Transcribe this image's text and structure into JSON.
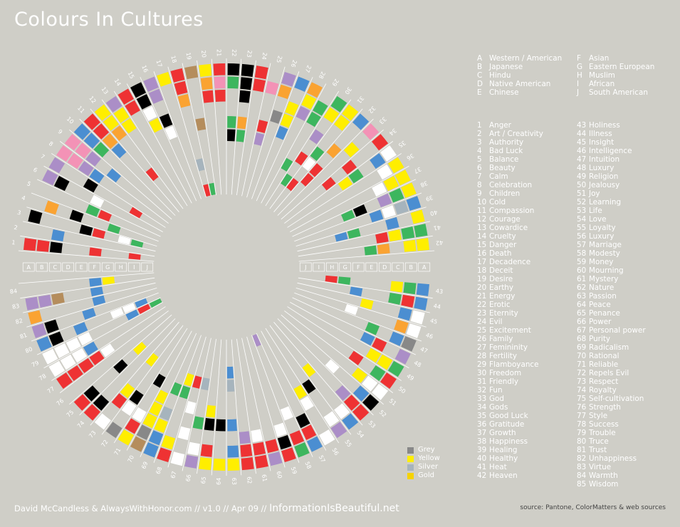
{
  "title": "Colours In Cultures",
  "colors": {
    "red": "#ee3233",
    "black": "#000000",
    "white": "#ffffff",
    "yellow": "#ffee00",
    "orange": "#faa332",
    "green": "#3db65e",
    "blue": "#4b8ed1",
    "purple": "#ab8ec7",
    "pink": "#f392b6",
    "brown": "#b58d5c",
    "grey": "#888888",
    "silver": "#a6b4bd",
    "gold": "#f6d300"
  },
  "cultures": [
    {
      "key": "A",
      "name": "Western / American"
    },
    {
      "key": "B",
      "name": "Japanese"
    },
    {
      "key": "C",
      "name": "Hindu"
    },
    {
      "key": "D",
      "name": "Native American"
    },
    {
      "key": "E",
      "name": "Chinese"
    },
    {
      "key": "F",
      "name": "Asian"
    },
    {
      "key": "G",
      "name": "Eastern European"
    },
    {
      "key": "H",
      "name": "Muslim"
    },
    {
      "key": "I",
      "name": "African"
    },
    {
      "key": "J",
      "name": "South American"
    }
  ],
  "meanings": [
    "Anger",
    "Art / Creativity",
    "Authority",
    "Bad Luck",
    "Balance",
    "Beauty",
    "Calm",
    "Celebration",
    "Children",
    "Cold",
    "Compassion",
    "Courage",
    "Cowardice",
    "Cruelty",
    "Danger",
    "Death",
    "Decadence",
    "Deceit",
    "Desire",
    "Earthy",
    "Energy",
    "Erotic",
    "Eternity",
    "Evil",
    "Excitement",
    "Family",
    "Femininity",
    "Fertility",
    "Flamboyance",
    "Freedom",
    "Friendly",
    "Fun",
    "God",
    "Gods",
    "Good Luck",
    "Gratitude",
    "Growth",
    "Happiness",
    "Healing",
    "Healthy",
    "Heat",
    "Heaven",
    "Holiness",
    "Illness",
    "Insight",
    "Intelligence",
    "Intuition",
    "Luxury",
    "Religion",
    "Jealousy",
    "Joy",
    "Learning",
    "Life",
    "Love",
    "Loyalty",
    "Luxury",
    "Marriage",
    "Modesty",
    "Money",
    "Mourning",
    "Mystery",
    "Nature",
    "Passion",
    "Peace",
    "Penance",
    "Power",
    "Personal power",
    "Purity",
    "Radicalism",
    "Rational",
    "Reliable",
    "Repels Evil",
    "Respect",
    "Royalty",
    "Self-cultivation",
    "Strength",
    "Style",
    "Success",
    "Trouble",
    "Truce",
    "Trust",
    "Unhappiness",
    "Virtue",
    "Warmth",
    "Wisdom"
  ],
  "ring_letters_left": [
    "A",
    "B",
    "C",
    "D",
    "E",
    "F",
    "G",
    "H",
    "I",
    "J"
  ],
  "ring_letters_right": [
    "J",
    "I",
    "H",
    "G",
    "F",
    "E",
    "D",
    "C",
    "B",
    "A"
  ],
  "swatch_legend": [
    {
      "label": "Grey",
      "color": "#888888"
    },
    {
      "label": "Yellow",
      "color": "#ffee00"
    },
    {
      "label": "Silver",
      "color": "#a6b4bd"
    },
    {
      "label": "Gold",
      "color": "#f6d300"
    }
  ],
  "chart_data": {
    "type": "radial-heatmap",
    "cells": [
      [
        1,
        0,
        "red"
      ],
      [
        1,
        1,
        "red"
      ],
      [
        1,
        2,
        "black"
      ],
      [
        1,
        5,
        "red"
      ],
      [
        1,
        8,
        "red"
      ],
      [
        2,
        2,
        "blue"
      ],
      [
        3,
        0,
        "black"
      ],
      [
        3,
        4,
        "black"
      ],
      [
        3,
        5,
        "red"
      ],
      [
        3,
        7,
        "white"
      ],
      [
        3,
        8,
        "green"
      ],
      [
        4,
        1,
        "orange"
      ],
      [
        4,
        3,
        "black"
      ],
      [
        4,
        6,
        "green"
      ],
      [
        5,
        4,
        "green"
      ],
      [
        5,
        5,
        "red"
      ],
      [
        6,
        0,
        "purple"
      ],
      [
        6,
        1,
        "black"
      ],
      [
        6,
        4,
        "white"
      ],
      [
        7,
        0,
        "purple"
      ],
      [
        7,
        3,
        "black"
      ],
      [
        7,
        7,
        "red"
      ],
      [
        8,
        0,
        "pink"
      ],
      [
        8,
        1,
        "pink"
      ],
      [
        8,
        2,
        "purple"
      ],
      [
        8,
        3,
        "blue"
      ],
      [
        9,
        0,
        "pink"
      ],
      [
        9,
        1,
        "pink"
      ],
      [
        9,
        2,
        "purple"
      ],
      [
        9,
        4,
        "blue"
      ],
      [
        10,
        0,
        "blue"
      ],
      [
        10,
        1,
        "blue"
      ],
      [
        10,
        2,
        "green"
      ],
      [
        11,
        0,
        "red"
      ],
      [
        11,
        1,
        "red"
      ],
      [
        11,
        2,
        "orange"
      ],
      [
        11,
        3,
        "blue"
      ],
      [
        12,
        0,
        "yellow"
      ],
      [
        12,
        1,
        "yellow"
      ],
      [
        12,
        2,
        "orange"
      ],
      [
        12,
        6,
        "red"
      ],
      [
        13,
        0,
        "purple"
      ],
      [
        13,
        1,
        "yellow"
      ],
      [
        13,
        2,
        "yellow"
      ],
      [
        14,
        0,
        "red"
      ],
      [
        14,
        1,
        "red"
      ],
      [
        15,
        0,
        "black"
      ],
      [
        15,
        1,
        "black"
      ],
      [
        15,
        2,
        "white"
      ],
      [
        15,
        3,
        "yellow"
      ],
      [
        16,
        0,
        "purple"
      ],
      [
        16,
        1,
        "purple"
      ],
      [
        16,
        3,
        "black"
      ],
      [
        16,
        4,
        "white"
      ],
      [
        17,
        0,
        "yellow"
      ],
      [
        18,
        0,
        "red"
      ],
      [
        18,
        1,
        "red"
      ],
      [
        18,
        2,
        "orange"
      ],
      [
        18,
        7,
        "silver"
      ],
      [
        18,
        9,
        "red"
      ],
      [
        19,
        0,
        "brown"
      ],
      [
        19,
        4,
        "brown"
      ],
      [
        19,
        9,
        "green"
      ],
      [
        20,
        0,
        "yellow"
      ],
      [
        20,
        1,
        "orange"
      ],
      [
        20,
        2,
        "red"
      ],
      [
        21,
        0,
        "red"
      ],
      [
        21,
        1,
        "pink"
      ],
      [
        21,
        2,
        "red"
      ],
      [
        22,
        0,
        "black"
      ],
      [
        22,
        1,
        "green"
      ],
      [
        22,
        4,
        "green"
      ],
      [
        22,
        5,
        "black"
      ],
      [
        23,
        0,
        "black"
      ],
      [
        23,
        1,
        "black"
      ],
      [
        23,
        2,
        "black"
      ],
      [
        23,
        4,
        "orange"
      ],
      [
        23,
        5,
        "green"
      ],
      [
        24,
        0,
        "red"
      ],
      [
        24,
        1,
        "red"
      ],
      [
        25,
        1,
        "pink"
      ],
      [
        25,
        4,
        "red"
      ],
      [
        25,
        5,
        "purple"
      ],
      [
        26,
        0,
        "purple"
      ],
      [
        26,
        1,
        "orange"
      ],
      [
        26,
        3,
        "grey"
      ],
      [
        27,
        0,
        "blue"
      ],
      [
        27,
        2,
        "yellow"
      ],
      [
        27,
        3,
        "yellow"
      ],
      [
        27,
        4,
        "blue"
      ],
      [
        28,
        0,
        "orange"
      ],
      [
        28,
        1,
        "yellow"
      ],
      [
        28,
        2,
        "purple"
      ],
      [
        29,
        1,
        "green"
      ],
      [
        29,
        2,
        "green"
      ],
      [
        29,
        6,
        "green"
      ],
      [
        30,
        0,
        "green"
      ],
      [
        30,
        1,
        "yellow"
      ],
      [
        30,
        3,
        "purple"
      ],
      [
        30,
        5,
        "red"
      ],
      [
        30,
        7,
        "green"
      ],
      [
        31,
        0,
        "yellow"
      ],
      [
        31,
        1,
        "yellow"
      ],
      [
        31,
        4,
        "green"
      ],
      [
        31,
        5,
        "white"
      ],
      [
        31,
        7,
        "red"
      ],
      [
        32,
        0,
        "blue"
      ],
      [
        32,
        3,
        "orange"
      ],
      [
        32,
        5,
        "red"
      ],
      [
        32,
        6,
        "red"
      ],
      [
        33,
        0,
        "pink"
      ],
      [
        33,
        2,
        "yellow"
      ],
      [
        34,
        0,
        "red"
      ],
      [
        34,
        3,
        "red"
      ],
      [
        34,
        5,
        "red"
      ],
      [
        35,
        0,
        "white"
      ],
      [
        35,
        1,
        "blue"
      ],
      [
        35,
        3,
        "green"
      ],
      [
        35,
        4,
        "yellow"
      ],
      [
        36,
        0,
        "yellow"
      ],
      [
        36,
        1,
        "white"
      ],
      [
        37,
        0,
        "yellow"
      ],
      [
        37,
        1,
        "yellow"
      ],
      [
        37,
        2,
        "white"
      ],
      [
        38,
        0,
        "yellow"
      ],
      [
        38,
        1,
        "green"
      ],
      [
        38,
        2,
        "purple"
      ],
      [
        38,
        4,
        "black"
      ],
      [
        38,
        5,
        "green"
      ],
      [
        39,
        0,
        "blue"
      ],
      [
        39,
        1,
        "silver"
      ],
      [
        39,
        2,
        "white"
      ],
      [
        39,
        3,
        "blue"
      ],
      [
        40,
        0,
        "yellow"
      ],
      [
        40,
        2,
        "blue"
      ],
      [
        40,
        5,
        "green"
      ],
      [
        40,
        6,
        "blue"
      ],
      [
        41,
        0,
        "green"
      ],
      [
        41,
        1,
        "green"
      ],
      [
        41,
        2,
        "yellow"
      ],
      [
        41,
        3,
        "red"
      ],
      [
        42,
        0,
        "yellow"
      ],
      [
        42,
        1,
        "yellow"
      ],
      [
        42,
        3,
        "orange"
      ],
      [
        42,
        4,
        "green"
      ],
      [
        43,
        0,
        "blue"
      ],
      [
        43,
        1,
        "green"
      ],
      [
        43,
        2,
        "yellow"
      ],
      [
        43,
        6,
        "green"
      ],
      [
        43,
        7,
        "red"
      ],
      [
        44,
        0,
        "blue"
      ],
      [
        44,
        1,
        "red"
      ],
      [
        44,
        2,
        "green"
      ],
      [
        44,
        5,
        "blue"
      ],
      [
        45,
        0,
        "white"
      ],
      [
        45,
        1,
        "blue"
      ],
      [
        45,
        4,
        "yellow"
      ],
      [
        46,
        0,
        "white"
      ],
      [
        46,
        1,
        "orange"
      ],
      [
        46,
        5,
        "white"
      ],
      [
        47,
        0,
        "grey"
      ],
      [
        47,
        1,
        "blue"
      ],
      [
        47,
        3,
        "green"
      ],
      [
        48,
        0,
        "purple"
      ],
      [
        48,
        2,
        "red"
      ],
      [
        48,
        3,
        "blue"
      ],
      [
        49,
        0,
        "green"
      ],
      [
        49,
        1,
        "yellow"
      ],
      [
        49,
        2,
        "yellow"
      ],
      [
        50,
        0,
        "red"
      ],
      [
        50,
        1,
        "green"
      ],
      [
        50,
        3,
        "red"
      ],
      [
        51,
        0,
        "white"
      ],
      [
        51,
        1,
        "white"
      ],
      [
        51,
        2,
        "yellow"
      ],
      [
        52,
        0,
        "black"
      ],
      [
        52,
        1,
        "blue"
      ],
      [
        52,
        4,
        "white"
      ],
      [
        53,
        0,
        "red"
      ],
      [
        53,
        1,
        "red"
      ],
      [
        53,
        2,
        "purple"
      ],
      [
        54,
        0,
        "blue"
      ],
      [
        54,
        1,
        "white"
      ],
      [
        54,
        5,
        "yellow"
      ],
      [
        55,
        0,
        "purple"
      ],
      [
        55,
        1,
        "white"
      ],
      [
        55,
        4,
        "black"
      ],
      [
        56,
        0,
        "white"
      ],
      [
        56,
        3,
        "white"
      ],
      [
        56,
        4,
        "yellow"
      ],
      [
        57,
        0,
        "blue"
      ],
      [
        57,
        1,
        "red"
      ],
      [
        57,
        2,
        "black"
      ],
      [
        58,
        0,
        "green"
      ],
      [
        58,
        1,
        "red"
      ],
      [
        58,
        3,
        "white"
      ],
      [
        58,
        9,
        "purple"
      ],
      [
        59,
        0,
        "red"
      ],
      [
        59,
        1,
        "black"
      ],
      [
        59,
        2,
        "white"
      ],
      [
        60,
        0,
        "purple"
      ],
      [
        60,
        1,
        "red"
      ],
      [
        61,
        0,
        "red"
      ],
      [
        61,
        1,
        "red"
      ],
      [
        61,
        2,
        "white"
      ],
      [
        62,
        0,
        "red"
      ],
      [
        62,
        1,
        "red"
      ],
      [
        62,
        2,
        "purple"
      ],
      [
        63,
        0,
        "yellow"
      ],
      [
        63,
        1,
        "blue"
      ],
      [
        63,
        3,
        "blue"
      ],
      [
        63,
        6,
        "silver"
      ],
      [
        63,
        7,
        "blue"
      ],
      [
        64,
        0,
        "yellow"
      ],
      [
        64,
        3,
        "black"
      ],
      [
        65,
        0,
        "yellow"
      ],
      [
        65,
        1,
        "red"
      ],
      [
        65,
        3,
        "black"
      ],
      [
        65,
        4,
        "yellow"
      ],
      [
        66,
        0,
        "purple"
      ],
      [
        66,
        1,
        "white"
      ],
      [
        66,
        3,
        "green"
      ],
      [
        66,
        6,
        "silver"
      ],
      [
        67,
        0,
        "white"
      ],
      [
        67,
        2,
        "white"
      ],
      [
        67,
        4,
        "white"
      ],
      [
        67,
        6,
        "red"
      ],
      [
        68,
        0,
        "red"
      ],
      [
        68,
        1,
        "yellow"
      ],
      [
        68,
        5,
        "green"
      ],
      [
        68,
        6,
        "yellow"
      ],
      [
        69,
        0,
        "blue"
      ],
      [
        69,
        1,
        "blue"
      ],
      [
        69,
        2,
        "yellow"
      ],
      [
        69,
        3,
        "silver"
      ],
      [
        69,
        5,
        "green"
      ],
      [
        70,
        0,
        "brown"
      ],
      [
        70,
        1,
        "grey"
      ],
      [
        70,
        2,
        "yellow"
      ],
      [
        70,
        3,
        "yellow"
      ],
      [
        70,
        4,
        "yellow"
      ],
      [
        71,
        0,
        "yellow"
      ],
      [
        71,
        1,
        "red"
      ],
      [
        71,
        2,
        "white"
      ],
      [
        71,
        5,
        "black"
      ],
      [
        72,
        0,
        "grey"
      ],
      [
        72,
        2,
        "white"
      ],
      [
        72,
        3,
        "black"
      ],
      [
        73,
        0,
        "white"
      ],
      [
        73,
        2,
        "red"
      ],
      [
        73,
        3,
        "yellow"
      ],
      [
        73,
        6,
        "yellow"
      ],
      [
        74,
        0,
        "red"
      ],
      [
        74,
        1,
        "black"
      ],
      [
        75,
        0,
        "red"
      ],
      [
        75,
        1,
        "black"
      ],
      [
        75,
        4,
        "black"
      ],
      [
        75,
        6,
        "yellow"
      ],
      [
        77,
        0,
        "red"
      ],
      [
        77,
        1,
        "red"
      ],
      [
        77,
        2,
        "red"
      ],
      [
        77,
        3,
        "red"
      ],
      [
        77,
        4,
        "white"
      ],
      [
        78,
        0,
        "white"
      ],
      [
        78,
        1,
        "white"
      ],
      [
        78,
        2,
        "white"
      ],
      [
        78,
        3,
        "blue"
      ],
      [
        79,
        0,
        "white"
      ],
      [
        79,
        1,
        "white"
      ],
      [
        79,
        2,
        "white"
      ],
      [
        79,
        3,
        "white"
      ],
      [
        79,
        7,
        "blue"
      ],
      [
        79,
        8,
        "red"
      ],
      [
        79,
        9,
        "green"
      ],
      [
        80,
        0,
        "blue"
      ],
      [
        80,
        1,
        "black"
      ],
      [
        80,
        3,
        "blue"
      ],
      [
        80,
        6,
        "white"
      ],
      [
        80,
        7,
        "white"
      ],
      [
        80,
        8,
        "blue"
      ],
      [
        81,
        0,
        "purple"
      ],
      [
        81,
        1,
        "black"
      ],
      [
        81,
        4,
        "blue"
      ],
      [
        82,
        0,
        "orange"
      ],
      [
        82,
        5,
        "blue"
      ],
      [
        83,
        0,
        "purple"
      ],
      [
        83,
        1,
        "purple"
      ],
      [
        83,
        2,
        "brown"
      ],
      [
        83,
        5,
        "blue"
      ],
      [
        84,
        5,
        "blue"
      ],
      [
        84,
        6,
        "yellow"
      ]
    ]
  },
  "footer": {
    "credit": "David McCandless & AlwaysWithHonor.com  // v1.0 // Apr 09 // ",
    "brand": "InformationIsBeautiful.net",
    "source": "source: Pantone, ColorMatters & web sources"
  }
}
